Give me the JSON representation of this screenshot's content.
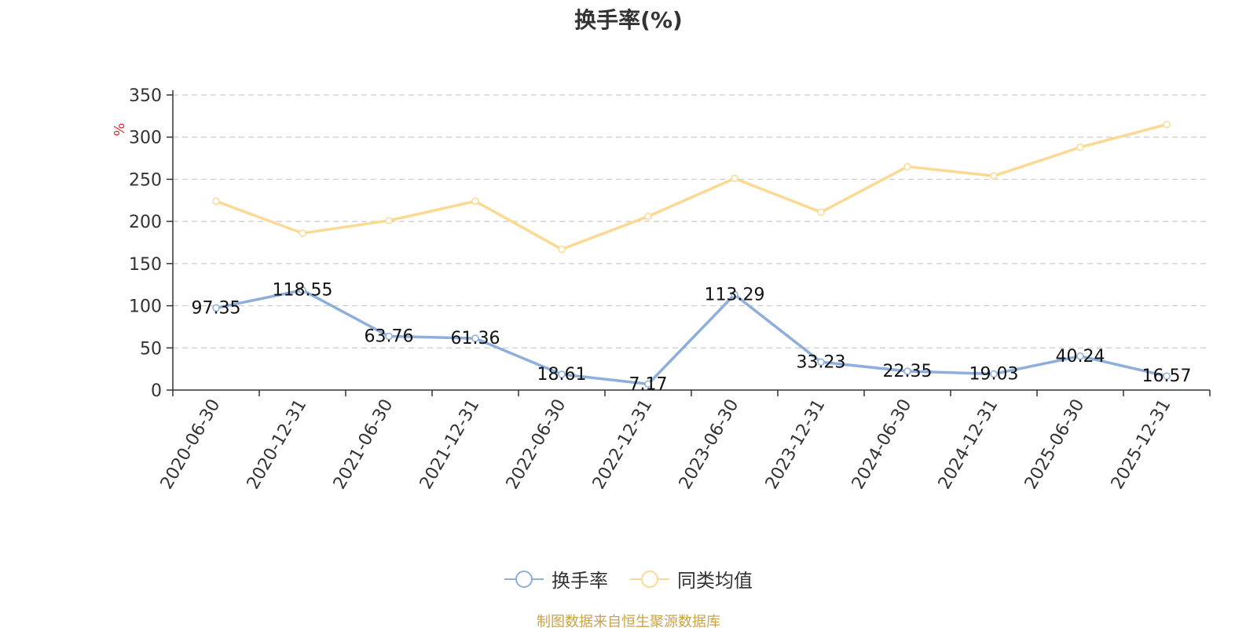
{
  "chart_data": {
    "type": "line",
    "title": "换手率(%)",
    "ylabel": "%",
    "categories": [
      "2020-06-30",
      "2020-12-31",
      "2021-06-30",
      "2021-12-31",
      "2022-06-30",
      "2022-12-31",
      "2023-06-30",
      "2023-12-31",
      "2024-06-30",
      "2024-12-31",
      "2025-06-30",
      "2025-12-31"
    ],
    "ylim": [
      0,
      350
    ],
    "yticks": [
      0,
      50,
      100,
      150,
      200,
      250,
      300,
      350
    ],
    "grid": true,
    "legend_position": "bottom",
    "series": [
      {
        "name": "换手率",
        "color": "#8eaedb",
        "show_labels": true,
        "values": [
          97.35,
          118.55,
          63.76,
          61.36,
          18.61,
          7.17,
          113.29,
          33.23,
          22.35,
          19.03,
          40.24,
          16.57
        ]
      },
      {
        "name": "同类均值",
        "color": "#fcd993",
        "show_labels": false,
        "values": [
          224,
          186,
          201,
          224,
          167,
          206,
          251,
          211,
          265,
          254,
          288,
          315
        ]
      }
    ]
  },
  "source_text": "制图数据来自恒生聚源数据库",
  "colors": {
    "ylabel": "#e03030",
    "source": "#c8a34a"
  }
}
